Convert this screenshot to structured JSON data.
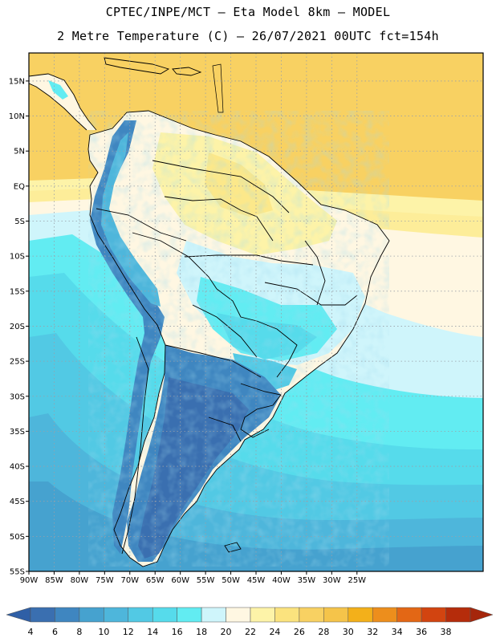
{
  "header": {
    "line1": "CPTEC/INPE/MCT –  Eta Model 8km – MODEL",
    "line2": "2 Metre Temperature (C) – 26/07/2021 00UTC fct=154h"
  },
  "map": {
    "lon_range": [
      -90,
      0
    ],
    "lat_range": [
      -55,
      19
    ],
    "lon_ticks": [
      -90,
      -85,
      -80,
      -75,
      -70,
      -65,
      -60,
      -55,
      -50,
      -45,
      -40,
      -35,
      -30,
      -25
    ],
    "lon_tick_labels": [
      "90W",
      "85W",
      "80W",
      "75W",
      "70W",
      "65W",
      "60W",
      "55W",
      "50W",
      "45W",
      "40W",
      "35W",
      "30W",
      "25W"
    ],
    "lat_ticks": [
      15,
      10,
      5,
      0,
      -5,
      -10,
      -15,
      -20,
      -25,
      -30,
      -35,
      -40,
      -45,
      -50,
      -55
    ],
    "lat_tick_labels": [
      "15N",
      "10N",
      "5N",
      "EQ",
      "5S",
      "10S",
      "15S",
      "20S",
      "25S",
      "30S",
      "35S",
      "40S",
      "45S",
      "50S",
      "55S"
    ],
    "gridlines": "dotted"
  },
  "colorbar": {
    "labels": [
      "4",
      "6",
      "8",
      "10",
      "12",
      "14",
      "16",
      "18",
      "20",
      "22",
      "24",
      "26",
      "28",
      "30",
      "32",
      "34",
      "36",
      "38"
    ],
    "colors": [
      "#3a6fb0",
      "#3f86c0",
      "#46a2cf",
      "#4eb6db",
      "#52c9e4",
      "#56dbeb",
      "#62ecf2",
      "#cff5fb",
      "#fff7e2",
      "#fdf3a8",
      "#fbe37e",
      "#f8d162",
      "#f5c44a",
      "#f3b01a",
      "#ed8e1c",
      "#e36715",
      "#d24410",
      "#b52c0b"
    ],
    "left_arrow_color": "#2f5fa6",
    "right_arrow_color": "#a5260b"
  }
}
